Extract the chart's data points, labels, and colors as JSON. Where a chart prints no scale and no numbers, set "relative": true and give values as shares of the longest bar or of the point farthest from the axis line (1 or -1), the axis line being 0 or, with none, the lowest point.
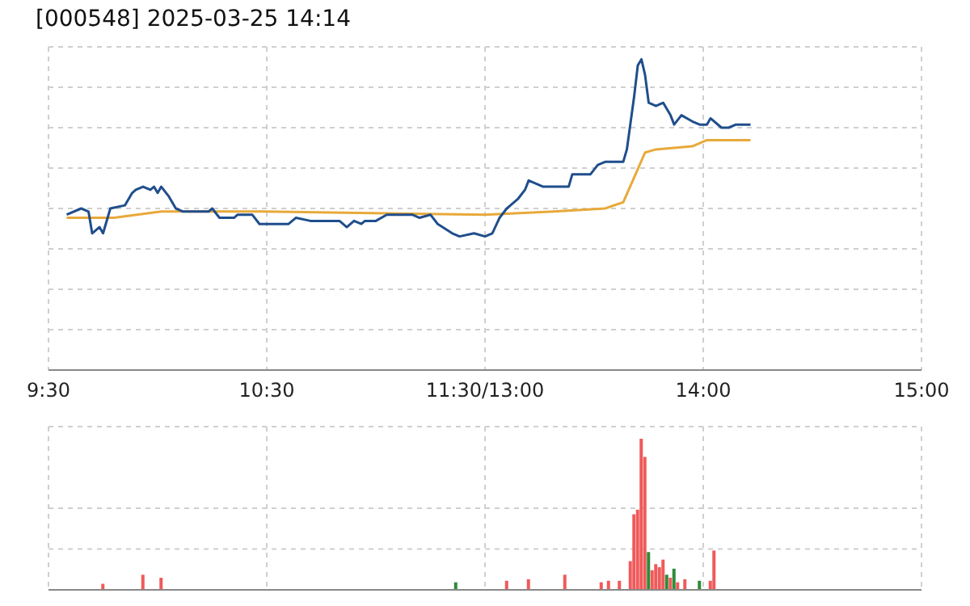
{
  "chart_data": [
    {
      "type": "line",
      "title": "[000548] 2025-03-25 14:14",
      "relative": true,
      "grid": true,
      "categories": [
        "9:30",
        null,
        null,
        null,
        null,
        null,
        null,
        null,
        null,
        null,
        null,
        null,
        null,
        null,
        null,
        null,
        null,
        null,
        null,
        null,
        null,
        null,
        null,
        null,
        null,
        null,
        null,
        null,
        null,
        null,
        null,
        null,
        null,
        null,
        null,
        null,
        null,
        null,
        null,
        null,
        null,
        null,
        null,
        null,
        null,
        null,
        null,
        null,
        null,
        null,
        null,
        null,
        null,
        null,
        null,
        null,
        null,
        null,
        null,
        null,
        "10:30",
        null,
        null,
        null,
        null,
        null,
        null,
        null,
        null,
        null,
        null,
        null,
        null,
        null,
        null,
        null,
        null,
        null,
        null,
        null,
        null,
        null,
        null,
        null,
        null,
        null,
        null,
        null,
        null,
        null,
        null,
        null,
        null,
        null,
        null,
        null,
        null,
        null,
        null,
        null,
        null,
        null,
        null,
        null,
        null,
        null,
        null,
        null,
        null,
        null,
        null,
        null,
        null,
        null,
        null,
        null,
        null,
        null,
        null,
        null,
        "11:30/13:00",
        null,
        null,
        null,
        null,
        null,
        null,
        null,
        null,
        null,
        null,
        null,
        null,
        null,
        null,
        null,
        null,
        null,
        null,
        null,
        null,
        null,
        null,
        null,
        null,
        null,
        null,
        null,
        null,
        null,
        null,
        null,
        null,
        null,
        null,
        null,
        null,
        null,
        null,
        null,
        null,
        null,
        null,
        null,
        null,
        null,
        null,
        null,
        null,
        null,
        null,
        null,
        null,
        null,
        null,
        null,
        null,
        null,
        null,
        null,
        "14:00",
        null,
        null,
        null,
        null,
        null,
        null,
        null,
        null,
        null,
        null,
        null,
        null,
        null,
        null,
        null,
        null,
        null,
        null,
        null,
        null,
        null,
        null,
        null,
        null,
        null,
        null,
        null,
        null,
        null,
        null,
        null,
        null,
        null,
        null,
        null,
        null,
        null,
        null,
        null,
        null,
        null,
        null,
        null,
        null,
        null,
        null,
        null,
        null,
        null,
        null,
        null,
        null,
        null,
        null,
        null,
        null,
        null,
        null,
        null,
        "15:00"
      ],
      "series": [
        {
          "color": "#1f4e8c",
          "values": [
            null,
            null,
            null,
            null,
            null,
            0.5,
            null,
            null,
            null,
            0.52,
            null,
            0.51,
            0.44,
            null,
            0.46,
            0.44,
            null,
            0.52,
            null,
            null,
            null,
            0.53,
            null,
            0.57,
            0.58,
            null,
            0.59,
            null,
            0.58,
            0.59,
            0.57,
            0.59,
            null,
            0.56,
            null,
            0.52,
            null,
            0.51,
            0.51,
            null,
            null,
            0.51,
            null,
            null,
            0.51,
            0.52,
            null,
            0.49,
            null,
            null,
            null,
            0.49,
            0.5,
            null,
            null,
            null,
            0.5,
            null,
            0.47,
            null,
            null,
            null,
            null,
            null,
            null,
            null,
            0.47,
            null,
            0.49,
            null,
            null,
            null,
            0.48,
            null,
            null,
            null,
            null,
            0.48,
            null,
            null,
            0.48,
            null,
            0.46,
            null,
            0.48,
            null,
            0.47,
            0.48,
            null,
            null,
            0.48,
            null,
            null,
            0.5,
            null,
            null,
            0.5,
            null,
            0.5,
            null,
            0.5,
            null,
            0.49,
            null,
            null,
            0.5,
            null,
            0.47,
            null,
            null,
            null,
            0.44,
            null,
            0.43,
            null,
            null,
            null,
            0.44,
            null,
            null,
            0.43,
            null,
            0.44,
            null,
            0.49,
            null,
            0.52,
            null,
            null,
            0.55,
            null,
            0.58,
            0.61,
            null,
            null,
            null,
            0.59,
            null,
            null,
            0.59,
            null,
            null,
            null,
            0.59,
            0.63,
            null,
            null,
            null,
            null,
            0.63,
            null,
            0.66,
            null,
            0.67,
            null,
            null,
            null,
            null,
            0.67,
            0.71,
            null,
            0.88,
            0.98,
            1,
            0.95,
            0.86,
            null,
            0.85,
            null,
            0.86,
            null,
            0.82,
            0.79,
            null,
            0.82,
            null,
            null,
            0.8,
            null,
            0.79,
            null,
            0.79,
            0.81,
            null,
            null,
            0.78,
            null,
            0.78,
            null,
            0.79,
            null,
            0.79,
            null,
            0.79,
            null,
            null,
            null,
            null,
            null,
            null,
            null,
            null,
            null,
            null,
            null,
            null,
            null,
            null,
            null,
            null,
            null,
            null,
            null,
            null,
            null,
            null,
            null,
            null,
            null,
            null,
            null,
            null,
            null,
            null,
            null,
            null,
            null,
            null,
            null,
            null,
            null,
            null,
            null,
            null,
            null,
            null,
            null,
            null,
            null,
            null,
            null
          ]
        },
        {
          "color": "#e8a93a",
          "values": [
            null,
            null,
            null,
            null,
            null,
            0.49,
            null,
            null,
            null,
            null,
            null,
            null,
            null,
            null,
            null,
            null,
            null,
            null,
            0.49,
            null,
            null,
            null,
            null,
            null,
            null,
            null,
            null,
            null,
            null,
            null,
            null,
            0.51,
            null,
            null,
            null,
            null,
            null,
            0.51,
            null,
            null,
            null,
            null,
            null,
            null,
            null,
            null,
            null,
            null,
            null,
            null,
            null,
            null,
            null,
            null,
            null,
            null,
            null,
            null,
            null,
            0.51,
            null,
            null,
            null,
            null,
            null,
            null,
            null,
            null,
            null,
            null,
            null,
            null,
            null,
            null,
            null,
            null,
            null,
            null,
            null,
            null,
            null,
            null,
            null,
            null,
            null,
            null,
            null,
            null,
            null,
            null,
            null,
            null,
            null,
            null,
            null,
            null,
            null,
            null,
            null,
            null,
            null,
            null,
            null,
            null,
            null,
            null,
            null,
            null,
            null,
            null,
            null,
            null,
            null,
            null,
            null,
            null,
            null,
            null,
            null,
            null,
            0.5,
            null,
            null,
            null,
            null,
            null,
            null,
            null,
            null,
            null,
            null,
            null,
            null,
            null,
            null,
            null,
            null,
            null,
            null,
            0.51,
            null,
            null,
            null,
            null,
            null,
            null,
            null,
            null,
            null,
            null,
            null,
            null,
            null,
            0.52,
            null,
            null,
            null,
            null,
            0.54,
            null,
            null,
            0.62,
            null,
            null,
            0.7,
            null,
            null,
            0.71,
            null,
            null,
            null,
            null,
            null,
            null,
            null,
            null,
            null,
            0.72,
            null,
            null,
            null,
            0.74,
            null,
            null,
            null,
            null,
            null,
            null,
            null,
            null,
            null,
            null,
            null,
            0.74,
            null,
            null,
            null,
            null,
            null,
            null,
            null,
            null,
            null,
            null,
            null,
            null,
            null,
            null,
            null,
            null,
            null,
            null,
            null,
            null,
            null,
            null,
            null,
            null,
            null,
            null,
            null,
            null,
            null,
            null,
            null,
            null,
            null,
            null,
            null,
            null,
            null,
            null,
            null,
            null,
            null,
            null,
            null,
            null,
            null,
            null,
            null
          ]
        }
      ]
    },
    {
      "type": "bar",
      "relative": true,
      "grid": true,
      "tick_labels": false,
      "categories": [
        null,
        null,
        null,
        null,
        null,
        null,
        null,
        null,
        null,
        null,
        null,
        null,
        null,
        null,
        null,
        null,
        null,
        null,
        null,
        null,
        null,
        null,
        null,
        null,
        null,
        null,
        null,
        null,
        null,
        null,
        null,
        null,
        null,
        null,
        null,
        null,
        null,
        null,
        null,
        null,
        null,
        null,
        null,
        null,
        null,
        null,
        null,
        null,
        null,
        null,
        null,
        null,
        null,
        null,
        null,
        null,
        null,
        null,
        null,
        null,
        null,
        null,
        null,
        null,
        null,
        null,
        null,
        null,
        null,
        null,
        null,
        null,
        null,
        null,
        null,
        null,
        null,
        null,
        null,
        null,
        null,
        null,
        null,
        null,
        null,
        null,
        null,
        null,
        null,
        null,
        null,
        null,
        null,
        null,
        null,
        null,
        null,
        null,
        null,
        null,
        null,
        null,
        null,
        null,
        null,
        null,
        null,
        null,
        null,
        null,
        null,
        null,
        null,
        null,
        null,
        null,
        null,
        null,
        null,
        null,
        null,
        null,
        null,
        null,
        null,
        null,
        null,
        null,
        null,
        null,
        null,
        null,
        null,
        null,
        null,
        null,
        null,
        null,
        null,
        null,
        null,
        null,
        null,
        null,
        null,
        null,
        null,
        null,
        null,
        null,
        null,
        null,
        null,
        null,
        null,
        null,
        null,
        null,
        null,
        null,
        null,
        null,
        null,
        null,
        null,
        null,
        null,
        null,
        null,
        null,
        null,
        null,
        null,
        null,
        null,
        null,
        null,
        null,
        null,
        null,
        null,
        null,
        null,
        null,
        null,
        null,
        null,
        null,
        null,
        null,
        null,
        null,
        null,
        null,
        null,
        null,
        null,
        null,
        null,
        null,
        null,
        null,
        null,
        null,
        null,
        null,
        null,
        null,
        null,
        null,
        null,
        null,
        null,
        null,
        null,
        null,
        null,
        null,
        null,
        null,
        null,
        null,
        null,
        null,
        null,
        null,
        null,
        null,
        null,
        null,
        null,
        null,
        null,
        null,
        null,
        null,
        null,
        null,
        null,
        null,
        null
      ],
      "values": [
        null,
        null,
        null,
        null,
        null,
        null,
        null,
        null,
        null,
        null,
        null,
        null,
        null,
        null,
        null,
        0.04,
        null,
        null,
        null,
        null,
        null,
        null,
        null,
        null,
        null,
        null,
        0.1,
        null,
        null,
        null,
        null,
        0.08,
        null,
        null,
        null,
        null,
        null,
        null,
        null,
        null,
        null,
        null,
        null,
        null,
        null,
        null,
        null,
        null,
        null,
        null,
        null,
        null,
        null,
        null,
        null,
        null,
        null,
        null,
        null,
        null,
        null,
        null,
        null,
        null,
        null,
        null,
        null,
        null,
        null,
        null,
        null,
        null,
        null,
        null,
        null,
        null,
        null,
        null,
        null,
        null,
        null,
        null,
        null,
        null,
        null,
        null,
        null,
        null,
        null,
        null,
        null,
        null,
        null,
        null,
        null,
        null,
        null,
        null,
        null,
        null,
        null,
        null,
        null,
        null,
        null,
        null,
        null,
        null,
        null,
        null,
        null,
        null,
        0.05,
        null,
        null,
        null,
        null,
        null,
        null,
        null,
        null,
        null,
        null,
        null,
        null,
        null,
        0.06,
        null,
        null,
        null,
        null,
        null,
        0.07,
        null,
        null,
        null,
        null,
        null,
        null,
        null,
        null,
        null,
        0.1,
        null,
        null,
        null,
        null,
        null,
        null,
        null,
        null,
        null,
        0.05,
        null,
        0.06,
        null,
        null,
        0.06,
        null,
        null,
        0.19,
        0.5,
        0.53,
        1,
        0.88,
        0.25,
        0.13,
        0.17,
        0.15,
        0.2,
        0.1,
        0.08,
        0.14,
        0.05,
        null,
        0.07,
        null,
        null,
        null,
        0.06,
        null,
        null,
        0.06,
        0.26,
        null,
        null,
        null,
        null,
        null,
        null,
        null,
        null,
        null,
        null,
        null,
        null,
        null,
        null,
        null,
        null,
        null,
        null,
        null,
        null,
        null,
        null,
        null,
        null,
        null,
        null,
        null,
        null,
        null,
        null,
        null,
        null,
        null,
        null,
        null,
        null,
        null,
        null,
        null,
        null,
        null,
        null,
        null,
        null,
        null,
        null,
        null,
        null,
        null,
        null,
        null,
        null,
        null,
        null,
        null,
        null,
        null
      ],
      "colors": [
        null,
        null,
        null,
        null,
        null,
        null,
        null,
        null,
        null,
        null,
        null,
        null,
        null,
        null,
        null,
        "#f05a5a",
        null,
        null,
        null,
        null,
        null,
        null,
        null,
        null,
        null,
        null,
        "#f05a5a",
        null,
        null,
        null,
        null,
        "#f05a5a",
        null,
        null,
        null,
        null,
        null,
        null,
        null,
        null,
        null,
        null,
        null,
        null,
        null,
        null,
        null,
        null,
        null,
        null,
        null,
        null,
        null,
        null,
        null,
        null,
        null,
        null,
        null,
        null,
        null,
        null,
        null,
        null,
        null,
        null,
        null,
        null,
        null,
        null,
        null,
        null,
        null,
        null,
        null,
        null,
        null,
        null,
        null,
        null,
        null,
        null,
        null,
        null,
        null,
        null,
        null,
        null,
        null,
        null,
        null,
        null,
        null,
        null,
        null,
        null,
        null,
        null,
        null,
        null,
        null,
        null,
        null,
        null,
        null,
        null,
        null,
        null,
        null,
        null,
        null,
        null,
        "#2e8b3a",
        null,
        null,
        null,
        null,
        null,
        null,
        null,
        null,
        null,
        null,
        null,
        null,
        null,
        "#f05a5a",
        null,
        null,
        null,
        null,
        null,
        "#f05a5a",
        null,
        null,
        null,
        null,
        null,
        null,
        null,
        null,
        null,
        "#f05a5a",
        null,
        null,
        null,
        null,
        null,
        null,
        null,
        null,
        null,
        "#f05a5a",
        null,
        "#f05a5a",
        null,
        null,
        "#f05a5a",
        null,
        null,
        "#f05a5a",
        "#f05a5a",
        "#f05a5a",
        "#f05a5a",
        "#f05a5a",
        "#2e8b3a",
        "#f05a5a",
        "#f05a5a",
        "#f05a5a",
        "#f05a5a",
        "#2e8b3a",
        "#f05a5a",
        "#2e8b3a",
        "#f05a5a",
        null,
        "#f05a5a",
        null,
        null,
        null,
        "#2e8b3a",
        null,
        null,
        "#f05a5a",
        "#f05a5a",
        null,
        null,
        null,
        null,
        null,
        null,
        null,
        null,
        null,
        null,
        null,
        null,
        null,
        null,
        null,
        null,
        null,
        null,
        null,
        null,
        null,
        null,
        null,
        null,
        null,
        null,
        null,
        null,
        null,
        null,
        null,
        null,
        null,
        null,
        null,
        null,
        null,
        null,
        null,
        null,
        null,
        null,
        null,
        null,
        null,
        null,
        null,
        null,
        null,
        null,
        null,
        null,
        null,
        null,
        null,
        null,
        null
      ]
    }
  ]
}
